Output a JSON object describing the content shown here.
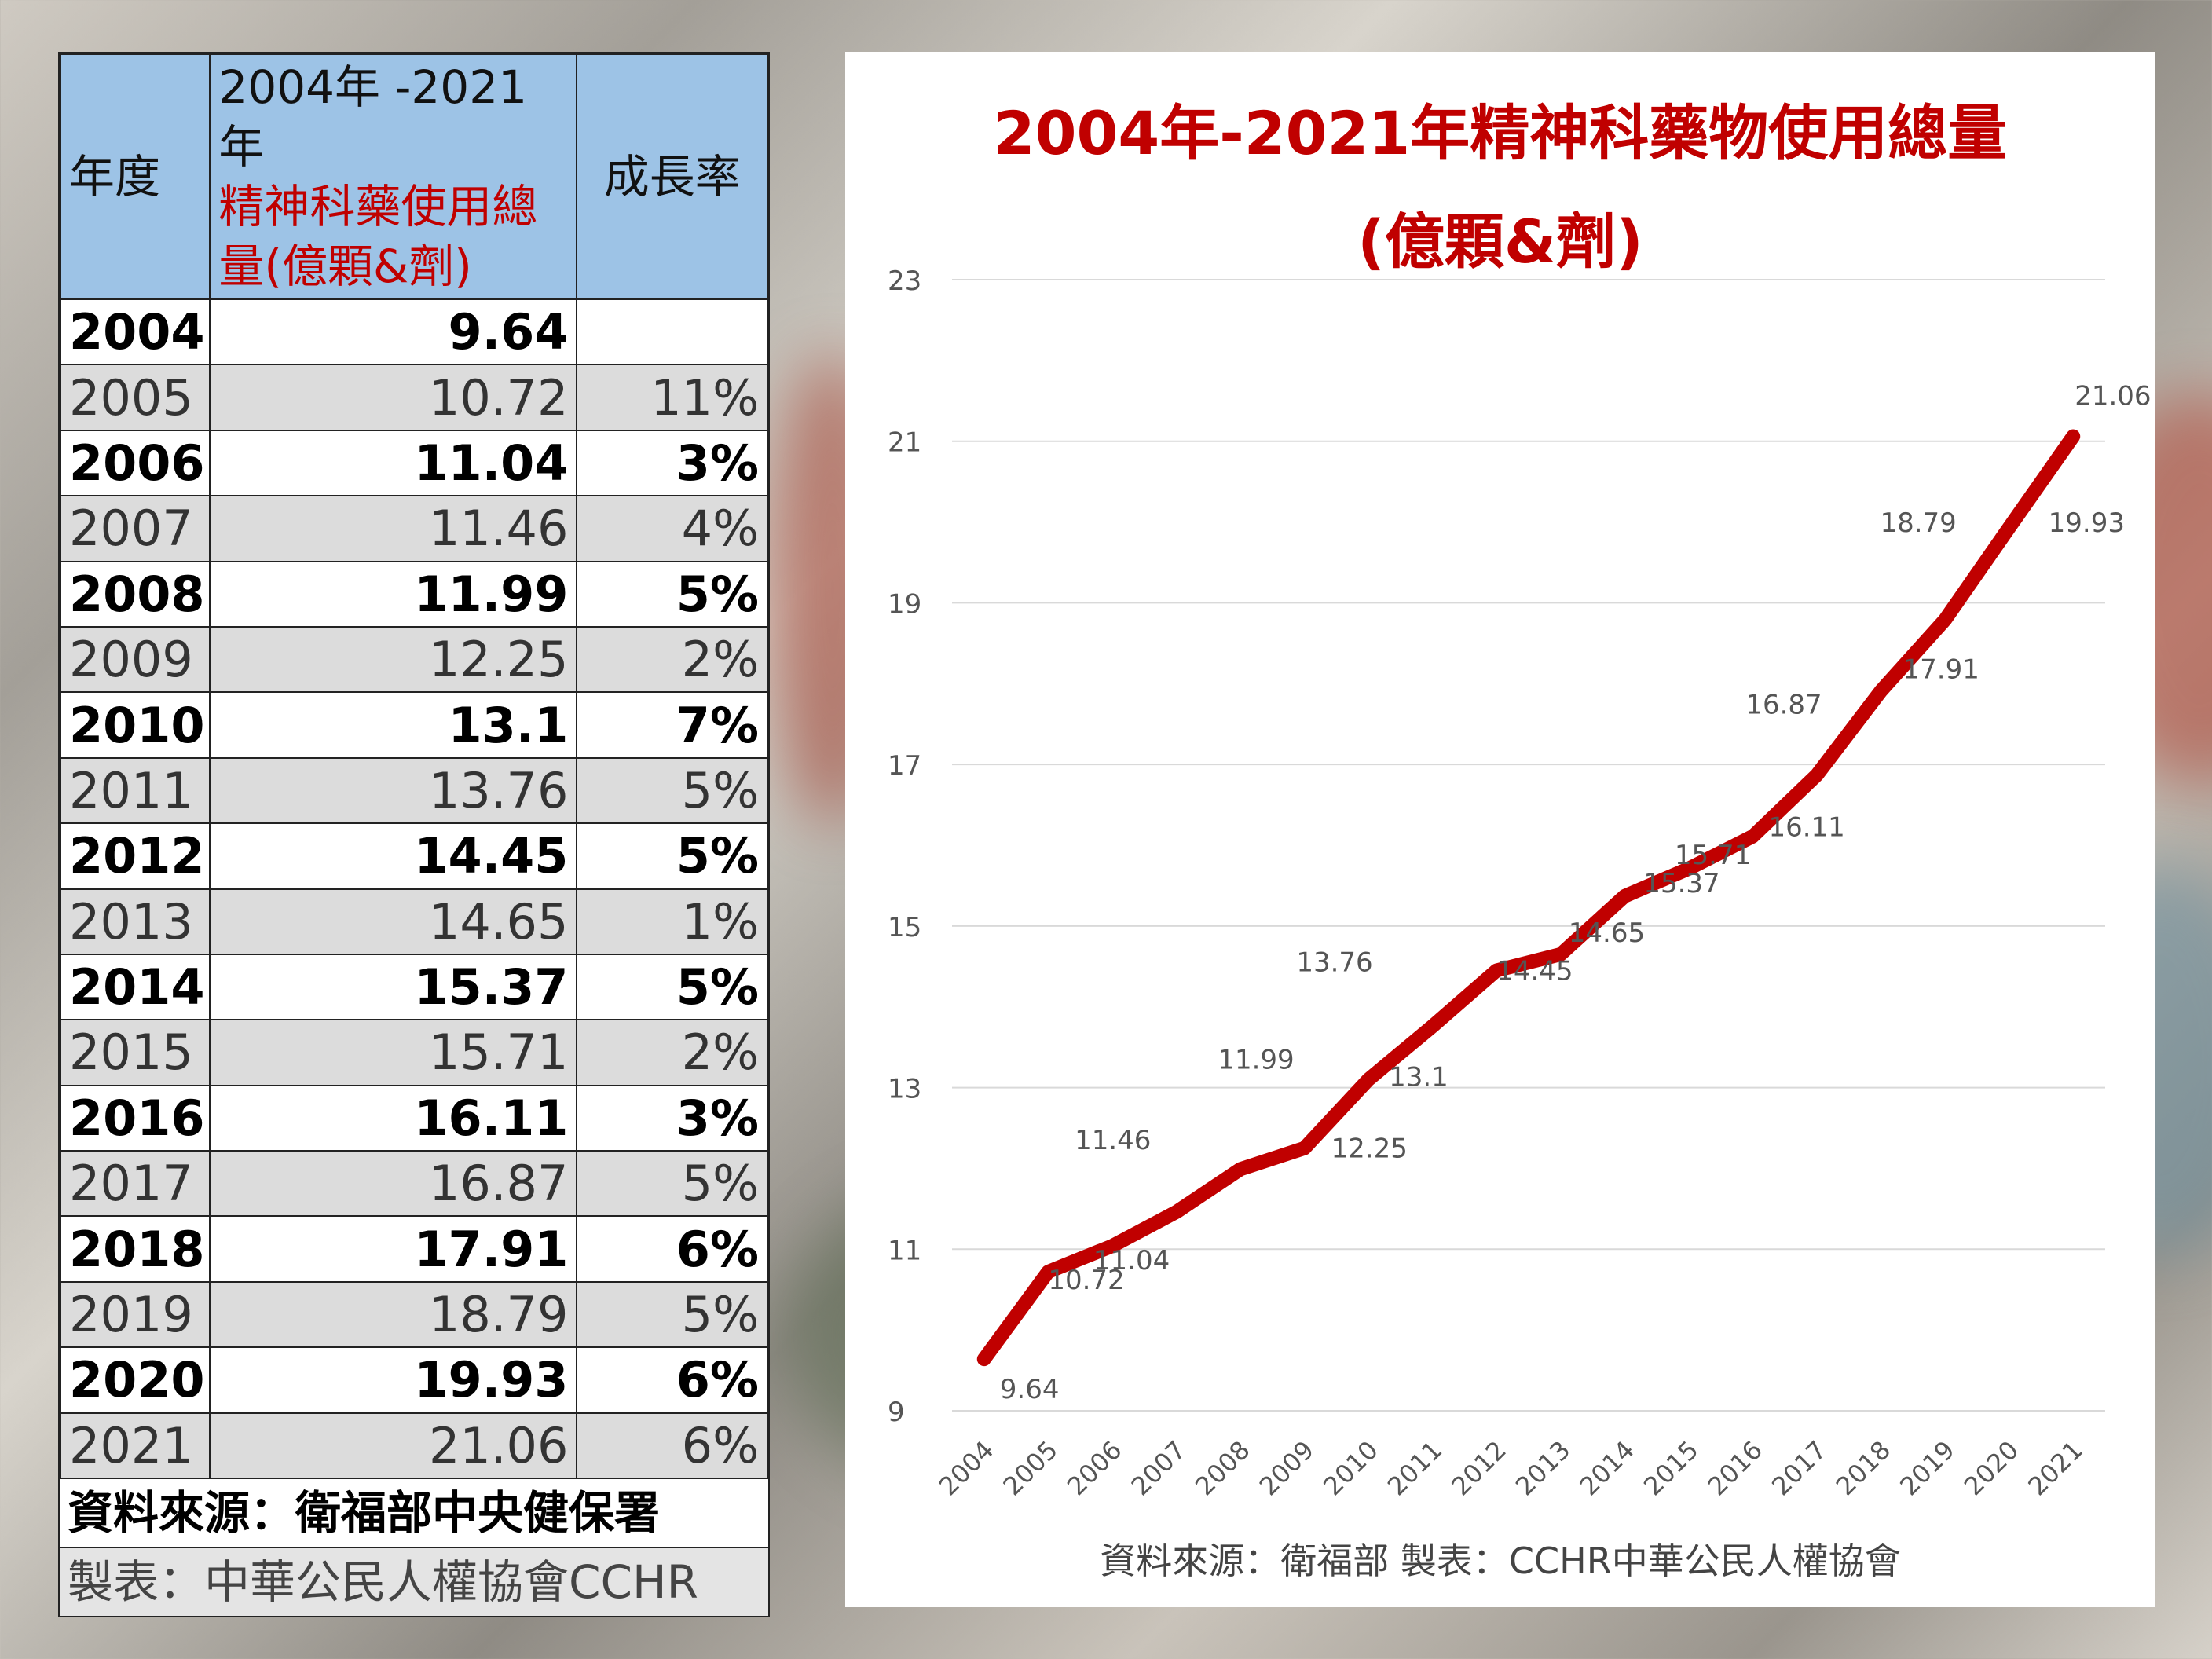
{
  "table": {
    "headers": {
      "year": "年度",
      "total_line1": "2004年 -2021年",
      "total_line2": "精神科藥使用總",
      "total_line3": "量(億顆&劑)",
      "growth": "成長率"
    },
    "rows": [
      {
        "year": "2004",
        "value": "9.64",
        "growth": ""
      },
      {
        "year": "2005",
        "value": "10.72",
        "growth": "11%"
      },
      {
        "year": "2006",
        "value": "11.04",
        "growth": "3%"
      },
      {
        "year": "2007",
        "value": "11.46",
        "growth": "4%"
      },
      {
        "year": "2008",
        "value": "11.99",
        "growth": "5%"
      },
      {
        "year": "2009",
        "value": "12.25",
        "growth": "2%"
      },
      {
        "year": "2010",
        "value": "13.1",
        "growth": "7%"
      },
      {
        "year": "2011",
        "value": "13.76",
        "growth": "5%"
      },
      {
        "year": "2012",
        "value": "14.45",
        "growth": "5%"
      },
      {
        "year": "2013",
        "value": "14.65",
        "growth": "1%"
      },
      {
        "year": "2014",
        "value": "15.37",
        "growth": "5%"
      },
      {
        "year": "2015",
        "value": "15.71",
        "growth": "2%"
      },
      {
        "year": "2016",
        "value": "16.11",
        "growth": "3%"
      },
      {
        "year": "2017",
        "value": "16.87",
        "growth": "5%"
      },
      {
        "year": "2018",
        "value": "17.91",
        "growth": "6%"
      },
      {
        "year": "2019",
        "value": "18.79",
        "growth": "5%"
      },
      {
        "year": "2020",
        "value": "19.93",
        "growth": "6%"
      },
      {
        "year": "2021",
        "value": "21.06",
        "growth": "6%"
      }
    ],
    "source": "資料來源：衛福部中央健保署",
    "maker": "製表：中華公民人權協會CCHR"
  },
  "chart_data": {
    "type": "line",
    "title_line1": "2004年-2021年精神科藥物使用總量",
    "title_line2": "(億顆&劑)",
    "x": [
      "2004",
      "2005",
      "2006",
      "2007",
      "2008",
      "2009",
      "2010",
      "2011",
      "2012",
      "2013",
      "2014",
      "2015",
      "2016",
      "2017",
      "2018",
      "2019",
      "2020",
      "2021"
    ],
    "series": [
      {
        "values": [
          9.64,
          10.72,
          11.04,
          11.46,
          11.99,
          12.25,
          13.1,
          13.76,
          14.45,
          14.65,
          15.37,
          15.71,
          16.11,
          16.87,
          17.91,
          18.79,
          19.93,
          21.06
        ],
        "color": "#c00000"
      }
    ],
    "yticks": [
      9,
      11,
      13,
      15,
      17,
      19,
      21,
      23
    ],
    "ylim": [
      9,
      23
    ],
    "grid": true,
    "footer": "資料來源：衛福部  製表：CCHR中華公民人權協會"
  }
}
